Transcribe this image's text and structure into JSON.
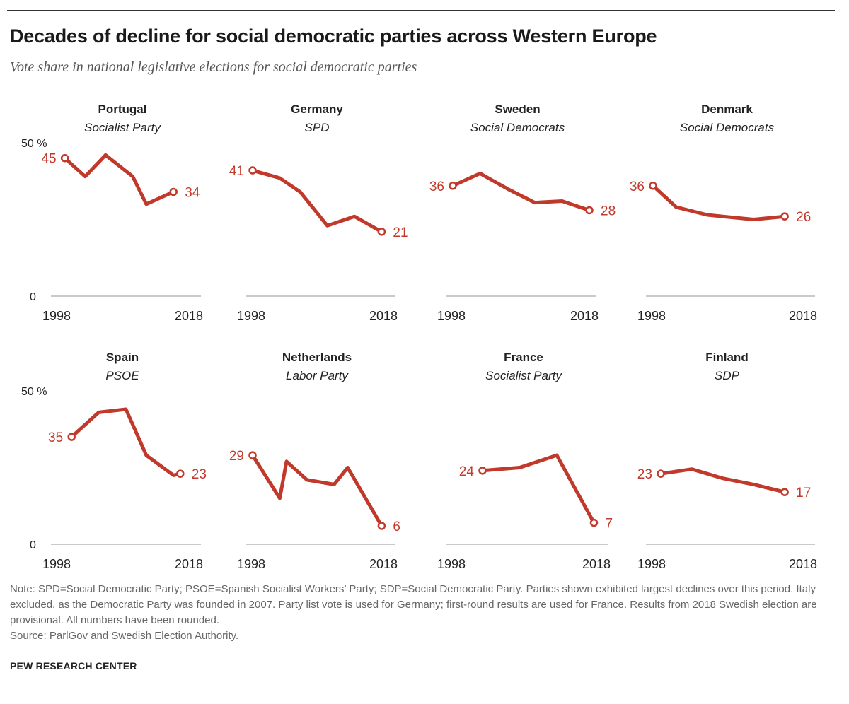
{
  "title": "Decades of decline for social democratic parties across Western Europe",
  "subtitle": "Vote share in national legislative elections for social democratic parties",
  "note": "Note: SPD=Social Democratic Party; PSOE=Spanish Socialist Workers’ Party; SDP=Social Democratic Party. Parties shown exhibited largest declines over this period. Italy excluded, as the Democratic Party was founded in 2007. Party list vote is used for Germany; first-round results are used for France. Results from 2018 Swedish election are provisional. All numbers have been rounded.",
  "source": "Source: ParlGov and Swedish Election Authority.",
  "credit": "PEW RESEARCH CENTER",
  "colors": {
    "line": "#c0392b",
    "axis": "#aaaaaa",
    "text": "#222222"
  },
  "chart_data": [
    {
      "type": "line",
      "country": "Portugal",
      "party": "Socialist Party",
      "x": [
        1999,
        2002,
        2005,
        2009,
        2011,
        2015
      ],
      "y": [
        45,
        39,
        46,
        39,
        30,
        34
      ],
      "start_label": "45",
      "end_label": "34",
      "ylim": [
        0,
        50
      ],
      "xlim": [
        1998,
        2018
      ],
      "ytick_top": "50 %",
      "ytick_bottom": "0",
      "xtick_start": "1998",
      "xtick_end": "2018"
    },
    {
      "type": "line",
      "country": "Germany",
      "party": "SPD",
      "x": [
        1998,
        2002,
        2005,
        2009,
        2013,
        2017
      ],
      "y": [
        41,
        38.5,
        34,
        23,
        26,
        21
      ],
      "start_label": "41",
      "end_label": "21",
      "ylim": [
        0,
        50
      ],
      "xlim": [
        1998,
        2018
      ],
      "ytick_top": "",
      "ytick_bottom": "",
      "xtick_start": "1998",
      "xtick_end": "2018"
    },
    {
      "type": "line",
      "country": "Sweden",
      "party": "Social Democrats",
      "x": [
        1998,
        2002,
        2006,
        2010,
        2014,
        2018
      ],
      "y": [
        36,
        40,
        35,
        30.5,
        31,
        28
      ],
      "start_label": "36",
      "end_label": "28",
      "ylim": [
        0,
        50
      ],
      "xlim": [
        1998,
        2018
      ],
      "ytick_top": "",
      "ytick_bottom": "",
      "xtick_start": "1998",
      "xtick_end": "2018"
    },
    {
      "type": "line",
      "country": "Denmark",
      "party": "Social Democrats",
      "x": [
        1998,
        2001,
        2005,
        2007,
        2011,
        2015
      ],
      "y": [
        36,
        29,
        26.5,
        26,
        25,
        26
      ],
      "start_label": "36",
      "end_label": "26",
      "ylim": [
        0,
        50
      ],
      "xlim": [
        1998,
        2018
      ],
      "ytick_top": "",
      "ytick_bottom": "",
      "xtick_start": "1998",
      "xtick_end": "2018"
    },
    {
      "type": "line",
      "country": "Spain",
      "party": "PSOE",
      "x": [
        2000,
        2004,
        2008,
        2011,
        2015,
        2016
      ],
      "y": [
        35,
        43,
        44,
        29,
        22.5,
        23
      ],
      "start_label": "35",
      "end_label": "23",
      "ylim": [
        0,
        50
      ],
      "xlim": [
        1998,
        2018
      ],
      "ytick_top": "50 %",
      "ytick_bottom": "0",
      "xtick_start": "1998",
      "xtick_end": "2018"
    },
    {
      "type": "line",
      "country": "Netherlands",
      "party": "Labor Party",
      "x": [
        1998,
        2002,
        2003,
        2006,
        2010,
        2012,
        2017
      ],
      "y": [
        29,
        15,
        27,
        21,
        19.5,
        25,
        6
      ],
      "start_label": "29",
      "end_label": "6",
      "ylim": [
        0,
        50
      ],
      "xlim": [
        1998,
        2018
      ],
      "ytick_top": "",
      "ytick_bottom": "",
      "xtick_start": "1998",
      "xtick_end": "2018"
    },
    {
      "type": "line",
      "country": "France",
      "party": "Socialist Party",
      "x": [
        2002,
        2007,
        2012,
        2017
      ],
      "y": [
        24,
        25,
        29,
        7
      ],
      "start_label": "24",
      "end_label": "7",
      "ylim": [
        0,
        50
      ],
      "xlim": [
        1998,
        2018
      ],
      "ytick_top": "",
      "ytick_bottom": "",
      "xtick_start": "1998",
      "xtick_end": "2018"
    },
    {
      "type": "line",
      "country": "Finland",
      "party": "SDP",
      "x": [
        1999,
        2003,
        2007,
        2011,
        2015
      ],
      "y": [
        23,
        24.5,
        21.5,
        19.5,
        17
      ],
      "start_label": "23",
      "end_label": "17",
      "ylim": [
        0,
        50
      ],
      "xlim": [
        1998,
        2018
      ],
      "ytick_top": "",
      "ytick_bottom": "",
      "xtick_start": "1998",
      "xtick_end": "2018"
    }
  ]
}
